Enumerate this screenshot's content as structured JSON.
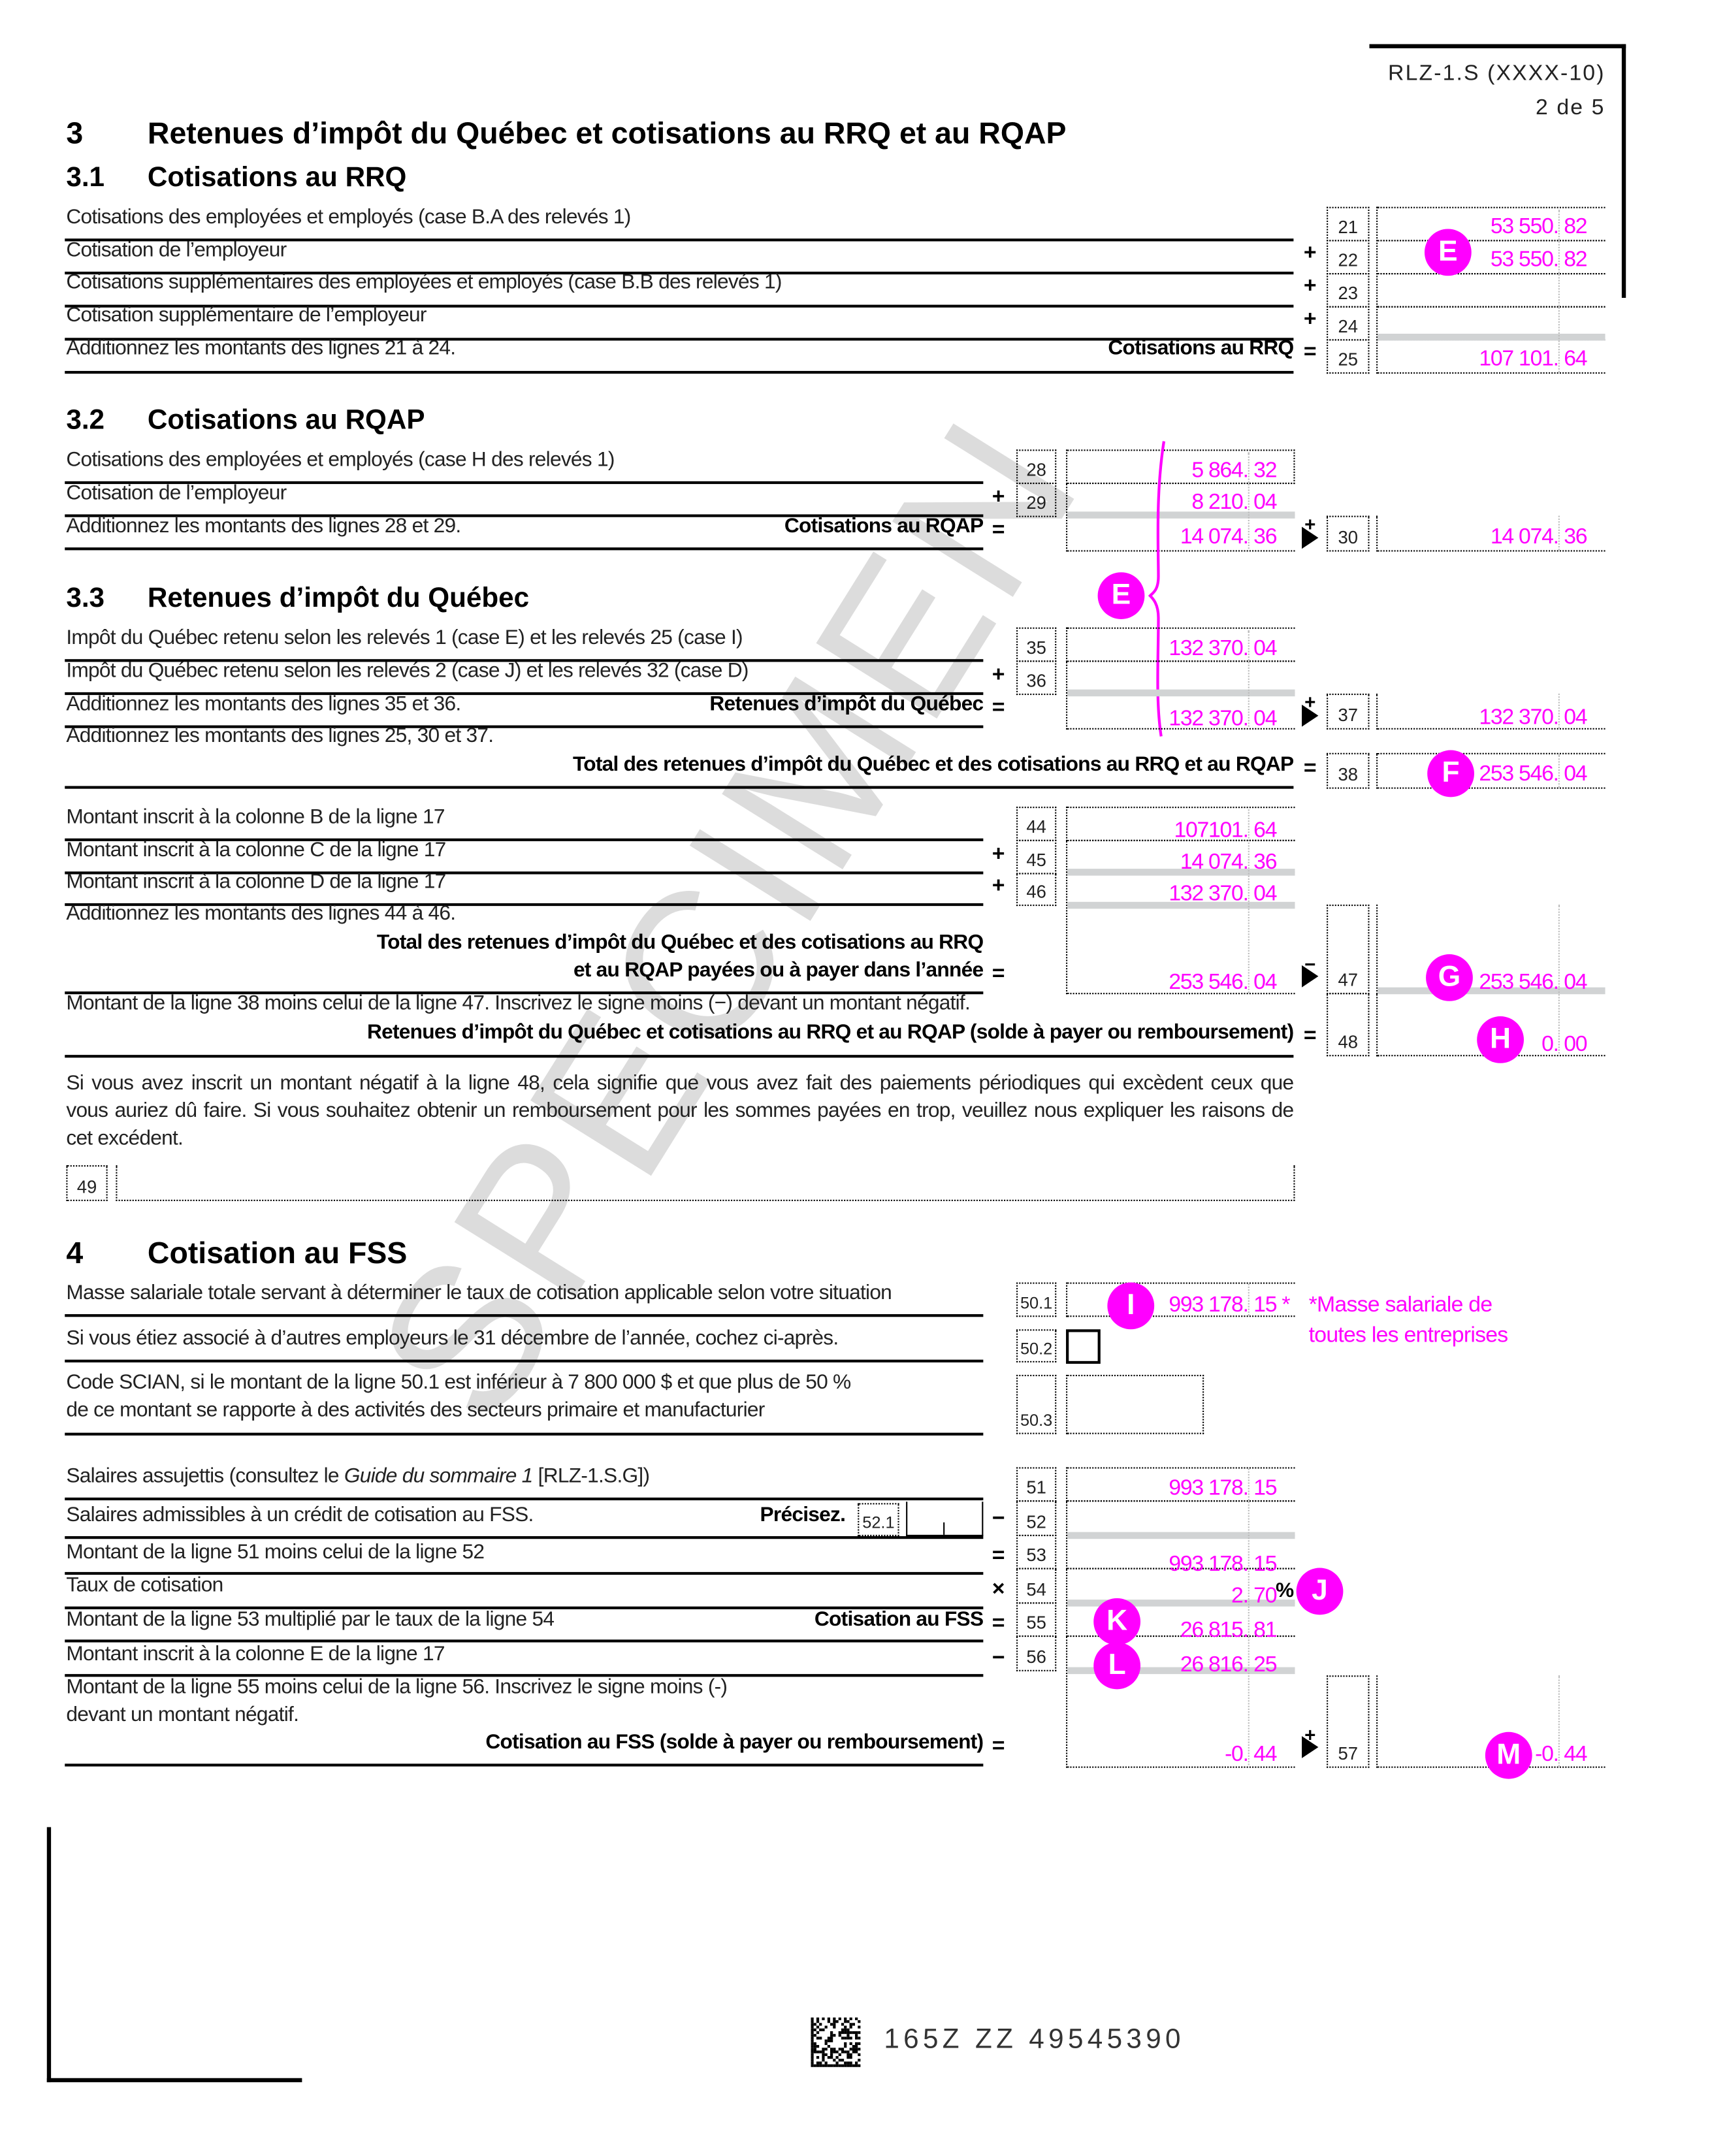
{
  "header": {
    "form_code": "RLZ-1.S (XXXX-10)",
    "page": "2 de 5"
  },
  "watermark": "SPECIMEN",
  "s3": {
    "num": "3",
    "title": "Retenues d’impôt du Québec et cotisations au RRQ et au RQAP"
  },
  "s31": {
    "num": "3.1",
    "title": "Cotisations au RRQ",
    "l21": {
      "no": "21",
      "label": "Cotisations des employées et employés (case B.A des relevés 1)",
      "int": "53 550",
      "dec": "82"
    },
    "l22": {
      "no": "22",
      "op": "+",
      "label": "Cotisation de l’employeur",
      "int": "53 550",
      "dec": "82"
    },
    "l23": {
      "no": "23",
      "op": "+",
      "label": "Cotisations supplémentaires des employées et employés (case B.B des relevés 1)"
    },
    "l24": {
      "no": "24",
      "op": "+",
      "label": "Cotisation supplémentaire de l’employeur"
    },
    "l25": {
      "no": "25",
      "op": "=",
      "label": "Additionnez les montants des lignes 21 à 24.",
      "total": "Cotisations au RRQ",
      "int": "107 101",
      "dec": "64"
    }
  },
  "s32": {
    "num": "3.2",
    "title": "Cotisations au RQAP",
    "l28": {
      "no": "28",
      "label": "Cotisations des employées et employés (case H des relevés 1)",
      "int": "5 864",
      "dec": "32"
    },
    "l29": {
      "no": "29",
      "op": "+",
      "label": "Cotisation de l’employeur",
      "int": "8 210",
      "dec": "04"
    },
    "sum": {
      "op": "=",
      "label": "Additionnez les montants des lignes 28 et 29.",
      "total": "Cotisations au RQAP",
      "int": "14 074",
      "dec": "36"
    },
    "l30": {
      "no": "30",
      "op": "+",
      "int": "14 074",
      "dec": "36"
    }
  },
  "s33": {
    "num": "3.3",
    "title": "Retenues d’impôt du Québec",
    "l35": {
      "no": "35",
      "label": "Impôt du Québec retenu selon les relevés 1 (case E) et les relevés 25 (case I)",
      "int": "132 370",
      "dec": "04"
    },
    "l36": {
      "no": "36",
      "op": "+",
      "label": "Impôt du Québec retenu selon les relevés 2 (case J) et les relevés 32 (case D)"
    },
    "sum": {
      "op": "=",
      "label": "Additionnez les montants des lignes 35 et 36.",
      "total": "Retenues d’impôt du Québec",
      "int": "132 370",
      "dec": "04"
    },
    "l37": {
      "no": "37",
      "op": "+",
      "int": "132 370",
      "dec": "04"
    },
    "l38": {
      "no": "38",
      "op": "=",
      "label": "Additionnez les montants des lignes 25, 30 et 37.",
      "total": "Total des retenues d’impôt du Québec et des cotisations au RRQ et au RQAP",
      "int": "253 546",
      "dec": "04"
    },
    "l44": {
      "no": "44",
      "label": "Montant inscrit à la colonne B de la ligne 17",
      "int": "107101",
      "dec": "64"
    },
    "l45": {
      "no": "45",
      "op": "+",
      "label": "Montant inscrit à la colonne C de la ligne 17",
      "int": "14 074",
      "dec": "36"
    },
    "l46": {
      "no": "46",
      "op": "+",
      "label": "Montant inscrit à la colonne D de la ligne 17",
      "int": "132 370",
      "dec": "04"
    },
    "sum47": {
      "op": "=",
      "label": "Additionnez les montants des lignes 44 à 46.",
      "total1": "Total des retenues d’impôt du Québec et des cotisations au RRQ",
      "total2": "et au RQAP payées ou à payer dans l’année",
      "int": "253 546",
      "dec": "04"
    },
    "l47": {
      "no": "47",
      "op": "−",
      "int": "253 546",
      "dec": "04"
    },
    "l48": {
      "no": "48",
      "op": "=",
      "label": "Montant de la ligne 38 moins celui de la ligne 47. Inscrivez le signe moins (−) devant un montant négatif.",
      "total": "Retenues d’impôt du Québec et cotisations au RRQ et au RQAP (solde à payer ou remboursement)",
      "int": "0",
      "dec": "00"
    },
    "note": [
      "Si vous avez inscrit un montant négatif à la ligne 48, cela signifie que vous avez fait des paiements périodiques qui excèdent ceux que",
      "vous auriez dû faire. Si vous souhaitez obtenir un remboursement pour les sommes payées en trop, veuillez nous expliquer les raisons de",
      "cet excédent."
    ],
    "l49": {
      "no": "49",
      "value": ""
    }
  },
  "s4": {
    "num": "4",
    "title": "Cotisation au FSS",
    "l50_1": {
      "no": "50.1",
      "label": "Masse salariale totale servant à déterminer le taux de cotisation applicable selon votre situation",
      "int": "993 178",
      "dec": "15 *"
    },
    "annotation": [
      "*Masse salariale de",
      "toutes les entreprises"
    ],
    "l50_2": {
      "no": "50.2",
      "label": "Si vous étiez associé à d’autres employeurs le 31 décembre de l’année, cochez ci-après.",
      "checked": false
    },
    "l50_3": {
      "no": "50.3",
      "label1": "Code SCIAN, si le montant de la ligne 50.1 est inférieur à 7 800 000 $ et que plus de 50 %",
      "label2": "de ce montant se rapporte à des activités des secteurs primaire et manufacturier",
      "value": ""
    },
    "l51": {
      "no": "51",
      "label_pre": "Salaires assujettis (consultez le ",
      "label_em": "Guide du sommaire 1",
      "label_post": " [RLZ-1.S.G])",
      "int": "993 178",
      "dec": "15"
    },
    "l52": {
      "no": "52",
      "op": "−",
      "label": "Salaires admissibles à un crédit de cotisation au FSS.",
      "specify": "Précisez.",
      "sub_no": "52.1",
      "sub_value": ""
    },
    "l53": {
      "no": "53",
      "op": "=",
      "label": "Montant de la ligne 51 moins celui de la ligne 52",
      "int": "993 178",
      "dec": "15"
    },
    "l54": {
      "no": "54",
      "op": "×",
      "label": "Taux de cotisation",
      "int": "2",
      "dec": "70",
      "unit": "%"
    },
    "l55": {
      "no": "55",
      "op": "=",
      "label": "Montant de la ligne 53 multiplié par le taux de la ligne 54",
      "total": "Cotisation au FSS",
      "int": "26 815",
      "dec": "81"
    },
    "l56": {
      "no": "56",
      "op": "−",
      "label": "Montant inscrit à la colonne E de la ligne 17",
      "int": "26 816",
      "dec": "25"
    },
    "sum57": {
      "op": "=",
      "label1": "Montant de la ligne 55 moins celui de la ligne 56. Inscrivez le signe moins (-)",
      "label2": "devant un montant négatif.",
      "total": "Cotisation au FSS (solde à payer ou remboursement)",
      "int": "-0",
      "dec": "44"
    },
    "l57": {
      "no": "57",
      "op": "+",
      "int": "-0",
      "dec": "44"
    }
  },
  "markers": {
    "E1": "E",
    "E2": "E",
    "F": "F",
    "G": "G",
    "H": "H",
    "I": "I",
    "J": "J",
    "K": "K",
    "L": "L",
    "M": "M"
  },
  "footer": {
    "barcode_text": "165Z ZZ 49545390"
  },
  "colors": {
    "annotation": "#ff00ff",
    "shading": "#d1d3d4"
  }
}
